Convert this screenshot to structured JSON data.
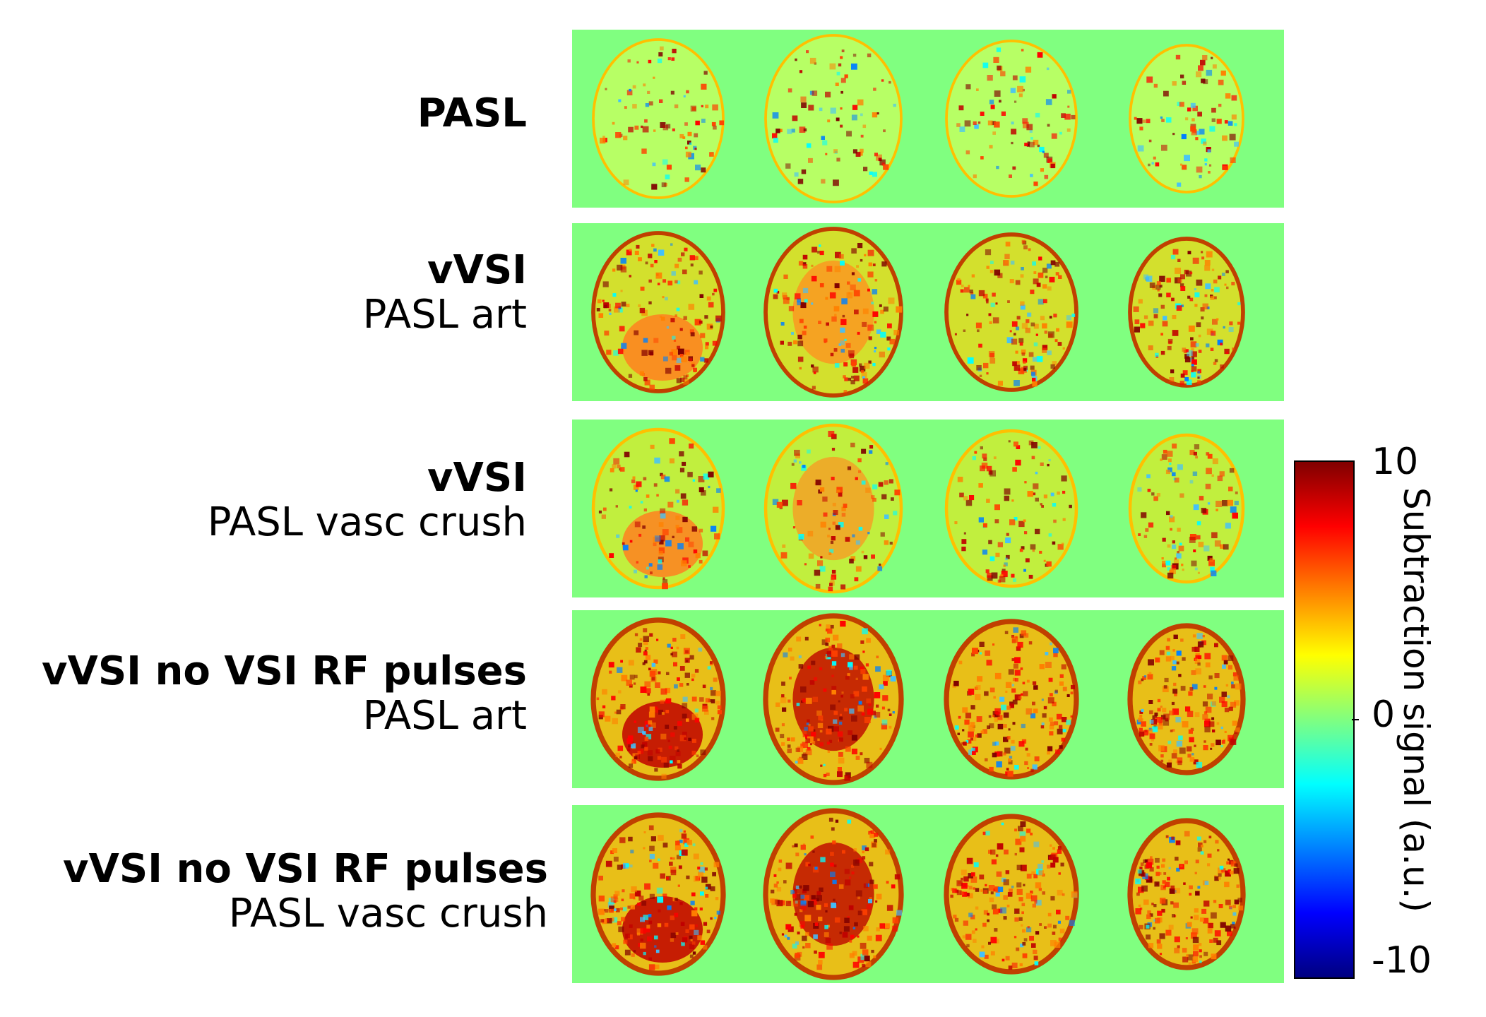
{
  "rows": [
    {
      "bold": "PASL",
      "regular": "",
      "intensity": 0.15,
      "base": "#ffff40"
    },
    {
      "bold": "vVSI",
      "regular": "PASL art",
      "intensity": 0.55,
      "base": "#ffd000"
    },
    {
      "bold": "vVSI",
      "regular": "PASL vasc crush",
      "intensity": 0.3,
      "base": "#ffe000"
    },
    {
      "bold": "vVSI no VSI RF pulses",
      "regular": "PASL art",
      "intensity": 0.85,
      "base": "#ffb000"
    },
    {
      "bold": "vVSI no VSI RF pulses",
      "regular": "PASL vasc crush",
      "intensity": 0.85,
      "base": "#ffb000"
    }
  ],
  "colorbar": {
    "max_label": "10",
    "mid_label": "0",
    "min_label": "-10",
    "title": "Subtraction signal (a.u.)",
    "background_color": "#80ff80"
  }
}
